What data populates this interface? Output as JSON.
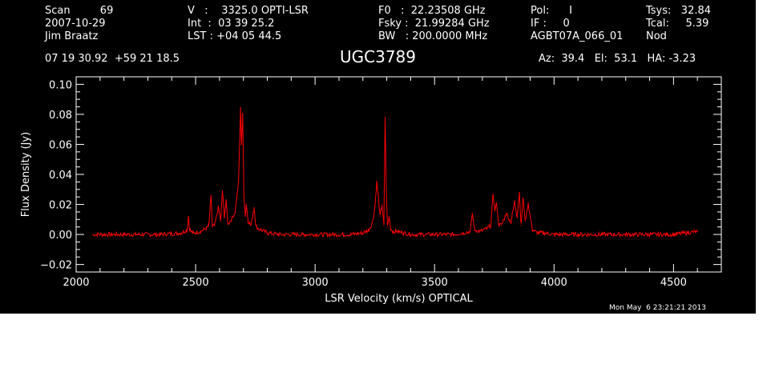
{
  "header": {
    "col1": {
      "l1": "Scan         69",
      "l2": "2007-10-29",
      "l3": "Jim Braatz"
    },
    "col2": {
      "l1": "V   :    3325.0 OPTI-LSR",
      "l2": "Int  :  03 39 25.2",
      "l3": "LST : +04 05 44.5"
    },
    "col3": {
      "l1": "F0   :  22.23508 GHz",
      "l2": "Fsky :  21.99284 GHz",
      "l3": "BW   : 200.0000 MHz"
    },
    "col4": {
      "l1": "Pol:      I",
      "l2": "IF :     0",
      "l3": "AGBT07A_066_01"
    },
    "col4b": {
      "l3": "Nod"
    },
    "col5": {
      "l1": "Tsys:   32.84",
      "l2": "Tcal:     5.39"
    },
    "coords": "07 19 30.92  +59 21 18.5",
    "source": "UGC3789",
    "azel": "Az:  39.4   El:  53.1   HA: -3.23",
    "timestamp": "Mon May  6 23:21:21 2013"
  },
  "colors": {
    "background": "#000000",
    "axes": "#ffffff",
    "trace": "#ff0000"
  },
  "chart_data": {
    "type": "line",
    "title": "UGC3789",
    "xlabel": "LSR Velocity (km/s) OPTICAL",
    "ylabel": "Flux Density (Jy)",
    "xlim": [
      2000,
      4700
    ],
    "ylim": [
      -0.025,
      0.105
    ],
    "xticks": [
      2000,
      2500,
      3000,
      3500,
      4000,
      4500
    ],
    "xtick_labels": [
      "2000",
      "2500",
      "3000",
      "3500",
      "4000",
      "4500"
    ],
    "yticks": [
      -0.02,
      0.0,
      0.02,
      0.04,
      0.06,
      0.08,
      0.1
    ],
    "ytick_labels": [
      "−0.02",
      "0.00",
      "0.02",
      "0.04",
      "0.06",
      "0.08",
      "0.10"
    ],
    "grid": false,
    "series": [
      {
        "color": "#ff0000",
        "x": [
          2070,
          2150,
          2250,
          2350,
          2440,
          2465,
          2470,
          2475,
          2480,
          2490,
          2520,
          2545,
          2555,
          2565,
          2570,
          2580,
          2595,
          2605,
          2612,
          2620,
          2628,
          2635,
          2650,
          2665,
          2680,
          2688,
          2692,
          2697,
          2702,
          2708,
          2712,
          2720,
          2732,
          2745,
          2752,
          2760,
          2775,
          2800,
          2850,
          2950,
          3050,
          3150,
          3200,
          3225,
          3240,
          3250,
          3258,
          3265,
          3272,
          3280,
          3288,
          3293,
          3298,
          3303,
          3310,
          3316,
          3325,
          3345,
          3370,
          3400,
          3500,
          3580,
          3620,
          3650,
          3658,
          3668,
          3690,
          3720,
          3735,
          3745,
          3752,
          3760,
          3768,
          3780,
          3800,
          3820,
          3835,
          3845,
          3855,
          3862,
          3870,
          3880,
          3892,
          3900,
          3910,
          3930,
          3960,
          4000,
          4100,
          4200,
          4300,
          4400,
          4500,
          4600
        ],
        "y": [
          0.0,
          0.0,
          0.0,
          0.0,
          0.001,
          0.003,
          0.012,
          0.004,
          0.002,
          0.001,
          0.002,
          0.004,
          0.006,
          0.026,
          0.005,
          0.006,
          0.018,
          0.009,
          0.029,
          0.012,
          0.022,
          0.007,
          0.01,
          0.015,
          0.035,
          0.084,
          0.06,
          0.08,
          0.028,
          0.012,
          0.02,
          0.009,
          0.006,
          0.018,
          0.006,
          0.004,
          0.003,
          0.001,
          0.0,
          0.0,
          0.0,
          0.0,
          0.001,
          0.003,
          0.008,
          0.018,
          0.035,
          0.025,
          0.012,
          0.02,
          0.006,
          0.078,
          0.03,
          0.005,
          0.012,
          0.004,
          0.002,
          0.002,
          0.001,
          0.0,
          0.0,
          0.0,
          0.001,
          0.002,
          0.014,
          0.003,
          0.002,
          0.004,
          0.006,
          0.027,
          0.016,
          0.021,
          0.007,
          0.006,
          0.014,
          0.008,
          0.022,
          0.012,
          0.028,
          0.006,
          0.024,
          0.009,
          0.021,
          0.012,
          0.003,
          0.001,
          0.001,
          0.0,
          0.0,
          0.0,
          0.0,
          0.0,
          0.0,
          0.002
        ]
      }
    ]
  }
}
